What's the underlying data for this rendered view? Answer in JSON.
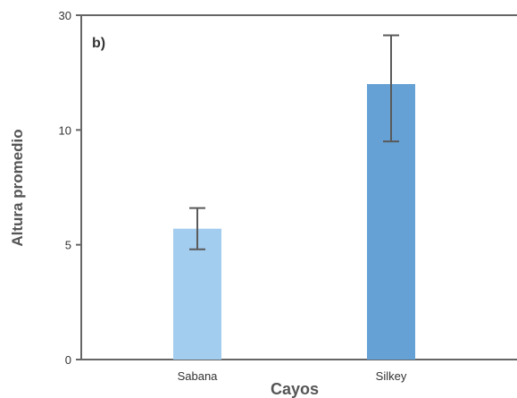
{
  "chart_data": {
    "type": "bar",
    "panel_label": "b)",
    "title": "",
    "xlabel": "Cayos",
    "ylabel": "Altura promedio",
    "categories": [
      "Sabana",
      "Silkey"
    ],
    "series": [
      {
        "values": [
          5.7,
          18.0
        ],
        "error": [
          0.9,
          8.5
        ]
      }
    ],
    "bar_colors": [
      "#a3cdef",
      "#65a1d5"
    ],
    "yticks": [
      0,
      5,
      10,
      30
    ],
    "yscale": "nonlinear",
    "ylim": [
      0,
      30
    ],
    "grid": false,
    "legend": "none"
  }
}
